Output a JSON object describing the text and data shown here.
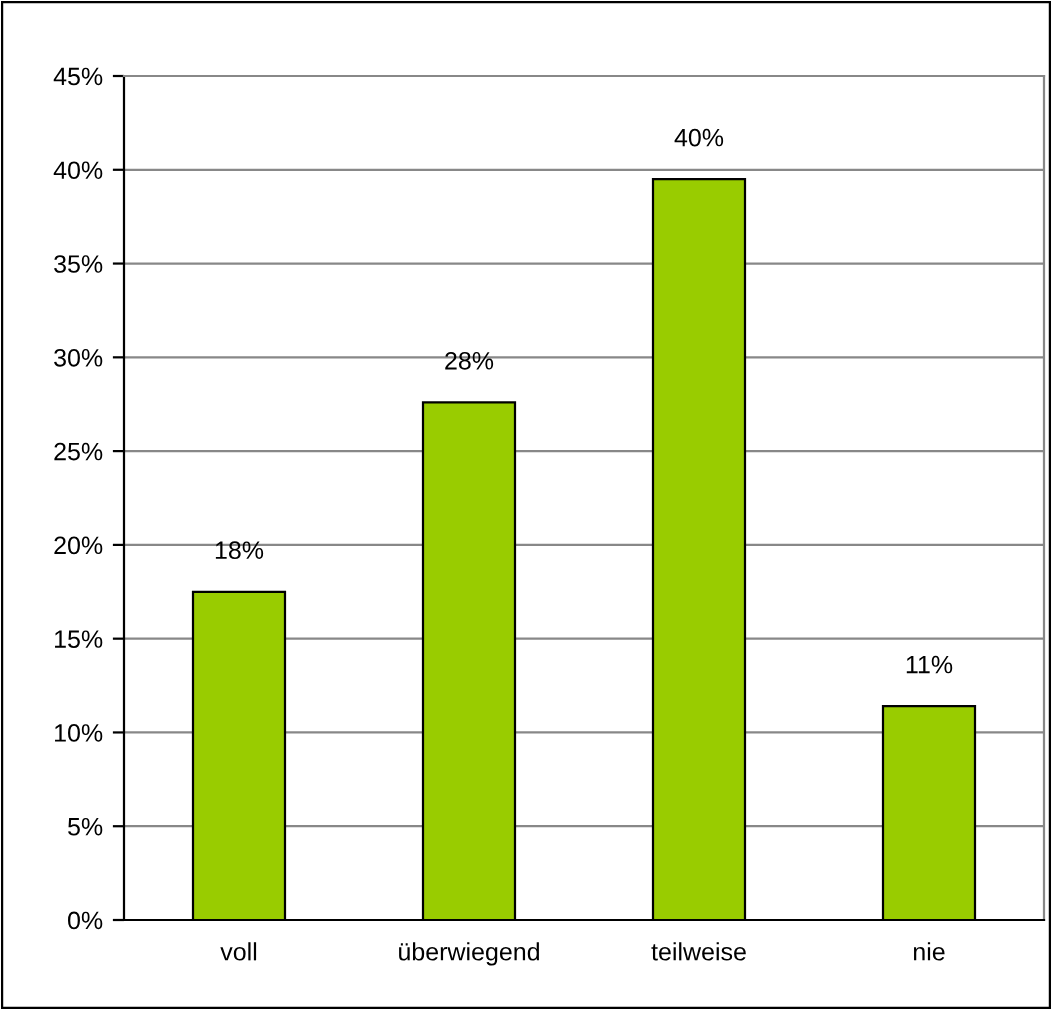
{
  "chart_data": {
    "type": "bar",
    "categories": [
      "voll",
      "überwiegend",
      "teilweise",
      "nie"
    ],
    "values": [
      17.5,
      27.6,
      39.5,
      11.4
    ],
    "value_labels": [
      "18%",
      "28%",
      "40%",
      "11%"
    ],
    "color": "#99cc00",
    "ylim": [
      0,
      45
    ],
    "yticks": [
      {
        "value": 0,
        "label": "0%"
      },
      {
        "value": 5,
        "label": "5%"
      },
      {
        "value": 10,
        "label": "10%"
      },
      {
        "value": 15,
        "label": "15%"
      },
      {
        "value": 20,
        "label": "20%"
      },
      {
        "value": 25,
        "label": "25%"
      },
      {
        "value": 30,
        "label": "30%"
      },
      {
        "value": 35,
        "label": "35%"
      },
      {
        "value": 40,
        "label": "40%"
      },
      {
        "value": 45,
        "label": "45%"
      }
    ],
    "grid": "y",
    "legend": false
  }
}
